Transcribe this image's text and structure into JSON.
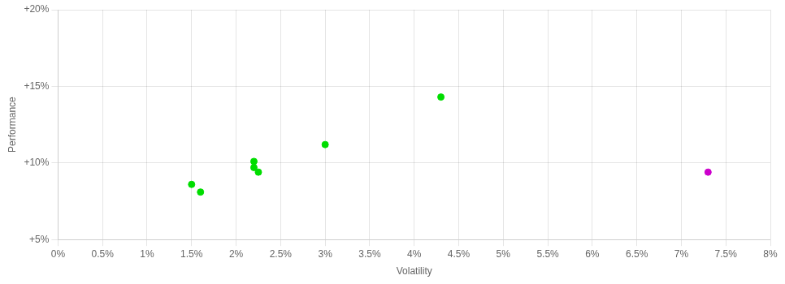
{
  "chart_data": {
    "type": "scatter",
    "xlabel": "Volatility",
    "ylabel": "Performance",
    "xlim": [
      0.0,
      0.08
    ],
    "ylim": [
      0.05,
      0.2
    ],
    "xticks": [
      {
        "value": 0.0,
        "label": "0%"
      },
      {
        "value": 0.005,
        "label": "0.5%"
      },
      {
        "value": 0.01,
        "label": "1%"
      },
      {
        "value": 0.015,
        "label": "1.5%"
      },
      {
        "value": 0.02,
        "label": "2%"
      },
      {
        "value": 0.025,
        "label": "2.5%"
      },
      {
        "value": 0.03,
        "label": "3%"
      },
      {
        "value": 0.035,
        "label": "3.5%"
      },
      {
        "value": 0.04,
        "label": "4%"
      },
      {
        "value": 0.045,
        "label": "4.5%"
      },
      {
        "value": 0.05,
        "label": "5%"
      },
      {
        "value": 0.055,
        "label": "5.5%"
      },
      {
        "value": 0.06,
        "label": "6%"
      },
      {
        "value": 0.065,
        "label": "6.5%"
      },
      {
        "value": 0.07,
        "label": "7%"
      },
      {
        "value": 0.075,
        "label": "7.5%"
      },
      {
        "value": 0.08,
        "label": "8%"
      }
    ],
    "yticks": [
      {
        "value": 0.05,
        "label": "+5%"
      },
      {
        "value": 0.1,
        "label": "+10%"
      },
      {
        "value": 0.15,
        "label": "+15%"
      },
      {
        "value": 0.2,
        "label": "+20%"
      }
    ],
    "grid": true,
    "series": [
      {
        "color": "#00dd00",
        "x": [
          0.015,
          0.016,
          0.022,
          0.0225,
          0.022,
          0.03,
          0.043
        ],
        "values": [
          0.086,
          0.081,
          0.097,
          0.094,
          0.101,
          0.112,
          0.143
        ]
      },
      {
        "color": "#cc00cc",
        "x": [
          0.073
        ],
        "values": [
          0.094
        ]
      }
    ]
  }
}
